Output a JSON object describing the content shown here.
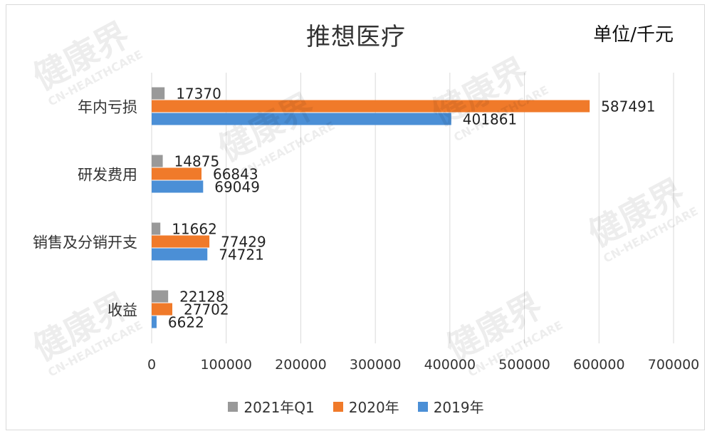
{
  "title": "推想医疗",
  "unit": "单位/千元",
  "watermark": {
    "brand": "健康界",
    "sub": "CN-HEALTHCARE"
  },
  "colors": {
    "2021年Q1": "#999999",
    "2020年": "#f07a2a",
    "2019年": "#4b8fd6",
    "grid": "#d9d9d9"
  },
  "chart_data": {
    "type": "bar",
    "orientation": "horizontal",
    "categories": [
      "年内亏损",
      "研发费用",
      "销售及分销开支",
      "收益"
    ],
    "series": [
      {
        "name": "2021年Q1",
        "values": [
          17370,
          14875,
          11662,
          22128
        ]
      },
      {
        "name": "2020年",
        "values": [
          587491,
          66843,
          77429,
          27702
        ]
      },
      {
        "name": "2019年",
        "values": [
          401861,
          69049,
          74721,
          6622
        ]
      }
    ],
    "xlim": [
      0,
      700000
    ],
    "xticks": [
      "0",
      "100000",
      "200000",
      "300000",
      "400000",
      "500000",
      "600000",
      "700000"
    ],
    "grid": true,
    "legend": "bottom"
  }
}
